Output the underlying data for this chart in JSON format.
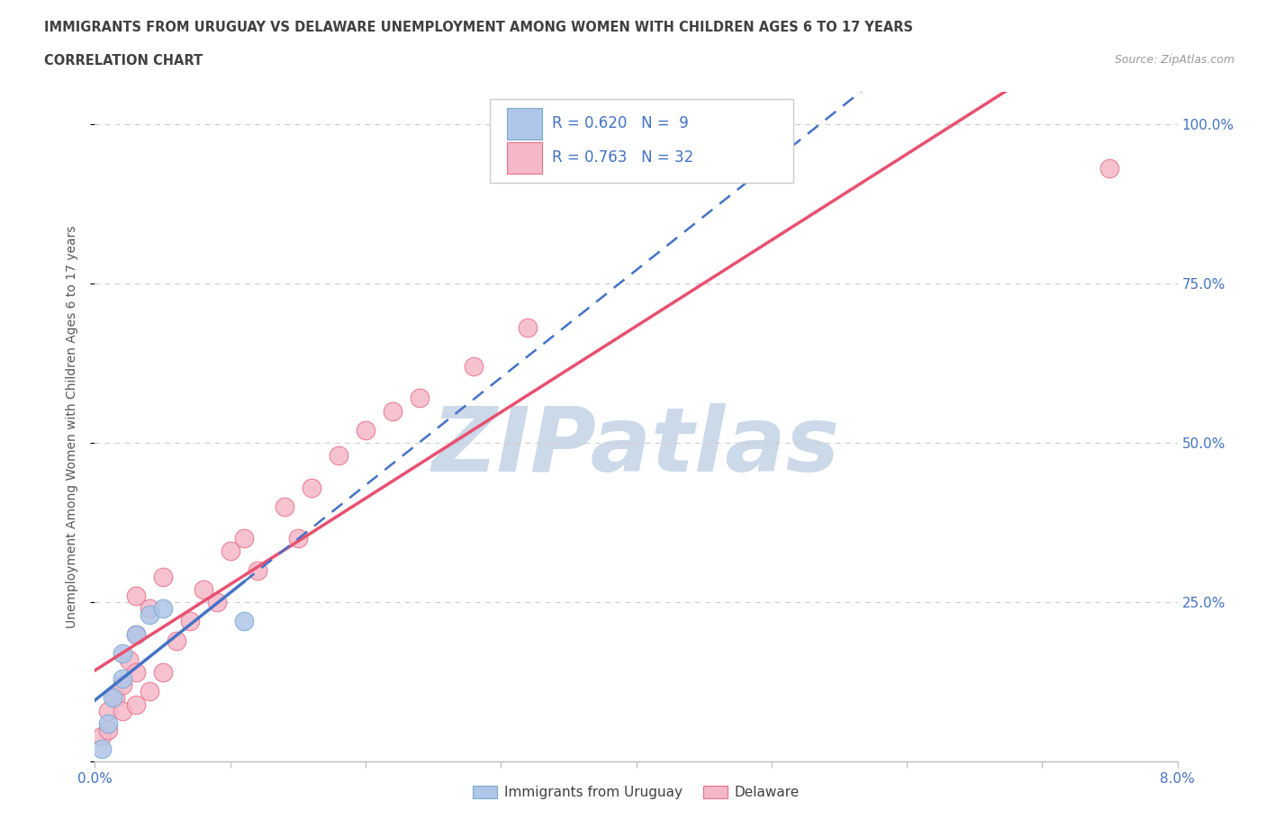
{
  "title_line1": "IMMIGRANTS FROM URUGUAY VS DELAWARE UNEMPLOYMENT AMONG WOMEN WITH CHILDREN AGES 6 TO 17 YEARS",
  "title_line2": "CORRELATION CHART",
  "source": "Source: ZipAtlas.com",
  "ylabel": "Unemployment Among Women with Children Ages 6 to 17 years",
  "xlim": [
    0.0,
    0.08
  ],
  "ylim": [
    0.0,
    1.05
  ],
  "xticks": [
    0.0,
    0.01,
    0.02,
    0.03,
    0.04,
    0.05,
    0.06,
    0.07,
    0.08
  ],
  "xticklabels": [
    "0.0%",
    "",
    "",
    "",
    "",
    "",
    "",
    "",
    "8.0%"
  ],
  "ytick_positions": [
    0.0,
    0.25,
    0.5,
    0.75,
    1.0
  ],
  "ytick_labels": [
    "",
    "25.0%",
    "50.0%",
    "75.0%",
    "100.0%"
  ],
  "background_color": "#ffffff",
  "watermark_text": "ZIPatlas",
  "watermark_color": "#ccd9e8",
  "uruguay_fill_color": "#aec6e8",
  "uruguay_edge_color": "#7aaad0",
  "delaware_fill_color": "#f5b8c8",
  "delaware_edge_color": "#e8708a",
  "uruguay_line_color": "#4472c4",
  "delaware_line_color": "#e85070",
  "grid_color": "#cccccc",
  "uruguay_R": 0.62,
  "uruguay_N": 9,
  "delaware_R": 0.763,
  "delaware_N": 32,
  "uruguay_x": [
    0.0005,
    0.001,
    0.0013,
    0.002,
    0.002,
    0.003,
    0.004,
    0.005,
    0.011
  ],
  "uruguay_y": [
    0.02,
    0.06,
    0.1,
    0.13,
    0.17,
    0.2,
    0.23,
    0.24,
    0.22
  ],
  "delaware_x": [
    0.0005,
    0.001,
    0.001,
    0.0015,
    0.002,
    0.002,
    0.0025,
    0.003,
    0.003,
    0.003,
    0.003,
    0.004,
    0.004,
    0.005,
    0.005,
    0.006,
    0.007,
    0.008,
    0.009,
    0.01,
    0.011,
    0.012,
    0.014,
    0.015,
    0.016,
    0.018,
    0.02,
    0.022,
    0.024,
    0.028,
    0.032,
    0.075
  ],
  "delaware_y": [
    0.04,
    0.05,
    0.08,
    0.1,
    0.08,
    0.12,
    0.16,
    0.09,
    0.14,
    0.2,
    0.26,
    0.11,
    0.24,
    0.14,
    0.29,
    0.19,
    0.22,
    0.27,
    0.25,
    0.33,
    0.35,
    0.3,
    0.4,
    0.35,
    0.43,
    0.48,
    0.52,
    0.55,
    0.57,
    0.62,
    0.68,
    0.93
  ],
  "title_color": "#404040",
  "axis_label_color": "#555555",
  "tick_label_color": "#4472c4",
  "stat_label_color": "#4472c4",
  "legend_label_color": "#404040"
}
